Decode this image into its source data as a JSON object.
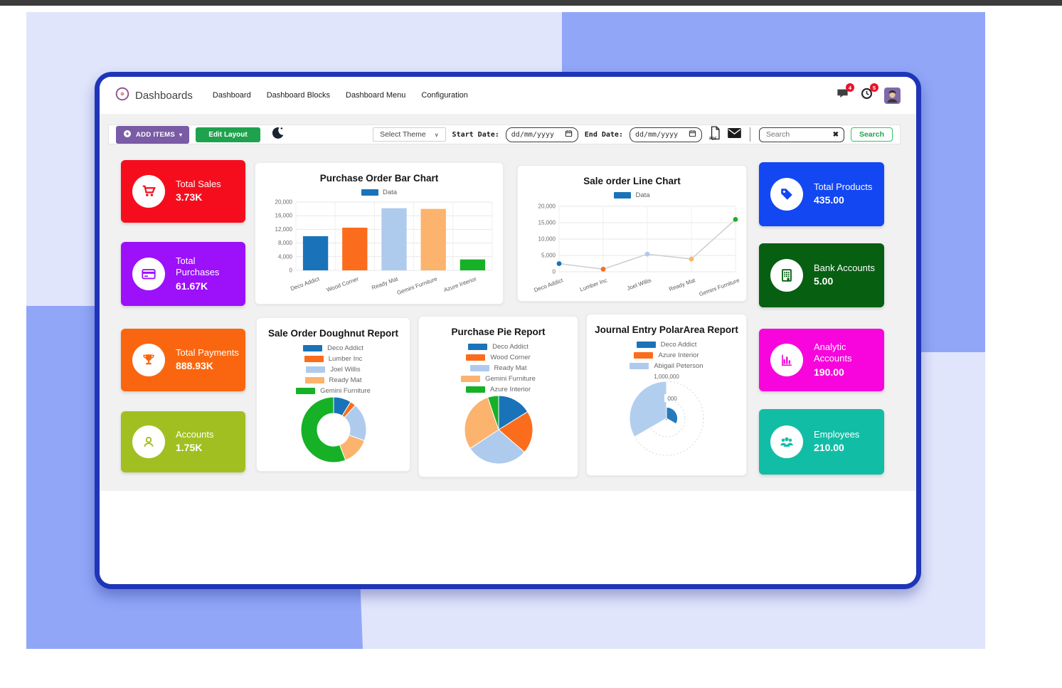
{
  "page": {
    "brand": "Dashboards",
    "menu": [
      {
        "label": "Dashboard"
      },
      {
        "label": "Dashboard Blocks"
      },
      {
        "label": "Dashboard Menu"
      },
      {
        "label": "Configuration"
      }
    ],
    "systray": {
      "messages_badge": "4",
      "activities_badge": "5"
    }
  },
  "toolbar": {
    "add_items": "ADD ITEMS",
    "edit_layout": "Edit Layout",
    "select_theme": "Select Theme",
    "start_date_label": "Start Date:",
    "end_date_label": "End Date:",
    "date_value": "dd/mm/yyyy",
    "pdf_icon_text": "PDF",
    "search_placeholder": "Search",
    "search_button": "Search"
  },
  "kpis": {
    "left": [
      {
        "label": "Total Sales",
        "value": "3.73K",
        "color": "#f60d1d",
        "icon": "cart-icon"
      },
      {
        "label": "Total Purchases",
        "value": "61.67K",
        "color": "#9c10fa",
        "icon": "credit-card-icon"
      },
      {
        "label": "Total Payments",
        "value": "888.93K",
        "color": "#fa660f",
        "icon": "trophy-icon"
      },
      {
        "label": "Accounts",
        "value": "1.75K",
        "color": "#a2bf22",
        "icon": "user-icon"
      }
    ],
    "right": [
      {
        "label": "Total Products",
        "value": "435.00",
        "color": "#1247f2",
        "icon": "tag-icon"
      },
      {
        "label": "Bank Accounts",
        "value": "5.00",
        "color": "#075f12",
        "icon": "bank-icon"
      },
      {
        "label": "Analytic Accounts",
        "value": "190.00",
        "color": "#f705dc",
        "icon": "bar-chart-icon"
      },
      {
        "label": "Employees",
        "value": "210.00",
        "color": "#12bda6",
        "icon": "employees-icon"
      }
    ]
  },
  "chart_data": [
    {
      "type": "bar",
      "title": "Purchase Order Bar Chart",
      "legend": [
        "Data"
      ],
      "legend_color": "#1a73b8",
      "categories": [
        "Deco Addict",
        "Wood Corner",
        "Ready Mat",
        "Gemini Furniture",
        "Azure Interior"
      ],
      "values": [
        10000,
        12500,
        18200,
        18000,
        3200
      ],
      "colors": [
        "#1a73b8",
        "#fb6d1d",
        "#aecbee",
        "#fcb36d",
        "#16b127"
      ],
      "ylim": [
        0,
        20000
      ],
      "yticks": [
        0,
        4000,
        8000,
        12000,
        16000,
        20000
      ],
      "grid": true,
      "legend_position": "top"
    },
    {
      "type": "line",
      "title": "Sale order Line Chart",
      "legend": [
        "Data"
      ],
      "legend_color": "#1a73b8",
      "categories": [
        "Deco Addict",
        "Lumber Inc",
        "Joel Willis",
        "Ready Mat",
        "Gemini Furniture"
      ],
      "values": [
        2500,
        800,
        5400,
        3900,
        16000
      ],
      "point_colors": [
        "#1a73b8",
        "#fb6d1d",
        "#aecbee",
        "#fcb36d",
        "#16b127"
      ],
      "line_color": "#cfcfcf",
      "ylim": [
        0,
        20000
      ],
      "yticks": [
        0,
        5000,
        10000,
        15000,
        20000
      ],
      "grid": true,
      "legend_position": "top"
    },
    {
      "type": "doughnut",
      "title": "Sale Order Doughnut Report",
      "labels": [
        "Deco Addict",
        "Lumber Inc",
        "Joel Willis",
        "Ready Mat",
        "Gemini Furniture"
      ],
      "values": [
        2500,
        800,
        5400,
        3900,
        16000
      ],
      "colors": [
        "#1a73b8",
        "#fb6d1d",
        "#aecbee",
        "#fcb36d",
        "#16b127"
      ],
      "legend_position": "top"
    },
    {
      "type": "pie",
      "title": "Purchase Pie Report",
      "labels": [
        "Deco Addict",
        "Wood Corner",
        "Ready Mat",
        "Gemini Furniture",
        "Azure Interior"
      ],
      "values": [
        10000,
        12500,
        18200,
        18000,
        3200
      ],
      "colors": [
        "#1a73b8",
        "#fb6d1d",
        "#aecbee",
        "#fcb36d",
        "#16b127"
      ],
      "legend_position": "top"
    },
    {
      "type": "polarArea",
      "title": "Journal Entry PolarArea Report",
      "labels": [
        "Deco Addict",
        "Azure Interior",
        "Abigail Peterson"
      ],
      "values": [
        300000,
        50000,
        1000000
      ],
      "colors": [
        "#1a73b8",
        "#fb6d1d",
        "#aecbee"
      ],
      "rmax": 1000000,
      "rticks": [
        500000,
        1000000
      ],
      "rtick_labels": [
        "1,000,000",
        "000"
      ],
      "legend_position": "top"
    }
  ]
}
